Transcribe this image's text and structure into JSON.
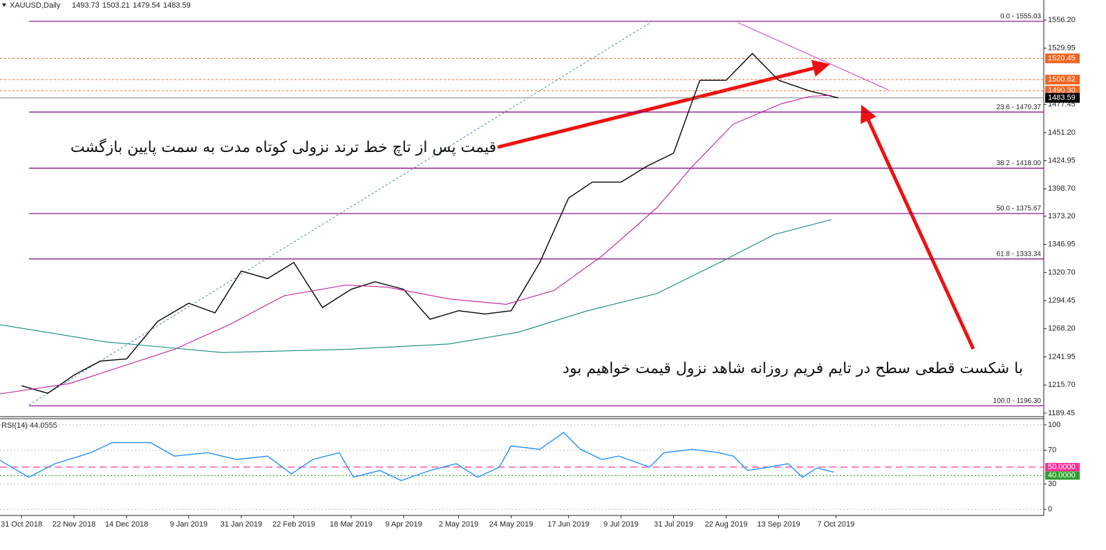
{
  "chart_data": [
    {
      "type": "line",
      "title": "XAUUSD,Daily",
      "ohlc": [
        1493.73,
        1503.21,
        1479.54,
        1483.59
      ],
      "xlim": [
        "2018-10-22",
        "2020-01-02"
      ],
      "xticks": [
        {
          "value": "2018-10-31",
          "label": "31 Oct 2018"
        },
        {
          "value": "2018-11-22",
          "label": "22 Nov 2018"
        },
        {
          "value": "2018-12-14",
          "label": "14 Dec 2018"
        },
        {
          "value": "2019-01-09",
          "label": "9 Jan 2019"
        },
        {
          "value": "2019-01-31",
          "label": "31 Jan 2019"
        },
        {
          "value": "2019-02-22",
          "label": "22 Feb 2019"
        },
        {
          "value": "2019-03-18",
          "label": "18 Mar 2019"
        },
        {
          "value": "2019-04-09",
          "label": "9 Apr 2019"
        },
        {
          "value": "2019-05-02",
          "label": "2 May 2019"
        },
        {
          "value": "2019-05-24",
          "label": "24 May 2019"
        },
        {
          "value": "2019-06-17",
          "label": "17 Jun 2019"
        },
        {
          "value": "2019-07-09",
          "label": "9 Jul 2019"
        },
        {
          "value": "2019-07-31",
          "label": "31 Jul 2019"
        },
        {
          "value": "2019-08-22",
          "label": "22 Aug 2019"
        },
        {
          "value": "2019-09-13",
          "label": "13 Sep 2019"
        },
        {
          "value": "2019-10-07",
          "label": "7 Oct 2019"
        }
      ],
      "ylim": [
        1186.2,
        1574.9
      ],
      "yticks": [
        {
          "value": 1556.2,
          "label": "1556.20"
        },
        1529.95,
        1477.45,
        {
          "value": 1451.2,
          "label": "1451.20"
        },
        1424.95,
        {
          "value": 1398.7,
          "label": "1398.70"
        },
        {
          "value": 1373.2,
          "label": "1373.20"
        },
        1346.95,
        {
          "value": 1320.7,
          "label": "1320.70"
        },
        1294.45,
        {
          "value": 1268.2,
          "label": "1268.20"
        },
        1241.95,
        {
          "value": 1215.7,
          "label": "1215.70"
        },
        1189.45
      ],
      "series": [
        {
          "color": "#000000",
          "x": [
            "2018-10-31",
            "2018-11-11",
            "2018-11-22",
            "2018-12-03",
            "2018-12-14",
            "2018-12-27",
            "2019-01-09",
            "2019-01-20",
            "2019-01-31",
            "2019-02-11",
            "2019-02-22",
            "2019-03-06",
            "2019-03-18",
            "2019-03-28",
            "2019-04-09",
            "2019-04-20",
            "2019-05-02",
            "2019-05-13",
            "2019-05-24",
            "2019-06-05",
            "2019-06-17",
            "2019-06-27",
            "2019-07-09",
            "2019-07-20",
            "2019-07-31",
            "2019-08-11",
            "2019-08-22",
            "2019-09-02",
            "2019-09-13",
            "2019-09-26",
            "2019-10-08"
          ],
          "values": [
            1215,
            1208,
            1225,
            1238,
            1240,
            1275,
            1292,
            1283,
            1322,
            1315,
            1330,
            1288,
            1305,
            1312,
            1305,
            1277,
            1285,
            1282,
            1285,
            1330,
            1390,
            1405,
            1405,
            1420,
            1432,
            1500,
            1500,
            1525,
            1500,
            1490,
            1483.59
          ]
        },
        {
          "color": "#c2189c",
          "x": [
            "2018-10-22",
            "2018-11-20",
            "2019-01-03",
            "2019-01-26",
            "2019-02-18",
            "2019-03-16",
            "2019-04-02",
            "2019-04-28",
            "2019-05-22",
            "2019-06-11",
            "2019-07-01",
            "2019-07-24",
            "2019-08-08",
            "2019-08-25",
            "2019-09-14",
            "2019-09-26",
            "2019-10-05"
          ],
          "values": [
            1207.5,
            1217,
            1249,
            1272,
            1299,
            1309,
            1307,
            1296,
            1291,
            1304,
            1336,
            1381,
            1420,
            1459,
            1478,
            1485,
            1486
          ]
        },
        {
          "color": "#0e8a80",
          "x": [
            "2018-10-22",
            "2018-12-05",
            "2019-01-23",
            "2019-03-16",
            "2019-04-28",
            "2019-05-27",
            "2019-06-25",
            "2019-07-24",
            "2019-08-22",
            "2019-09-11",
            "2019-10-05"
          ],
          "values": [
            1272,
            1256,
            1246,
            1249,
            1254,
            1265,
            1285,
            1301,
            1333,
            1356,
            1370
          ]
        }
      ],
      "fib_levels": [
        {
          "value": 1555.03,
          "label": "0.0 - 1555.03"
        },
        {
          "value": 1470.37,
          "label": "23.6 - 1470.37"
        },
        {
          "value": 1418.0,
          "label": "38.2 - 1418.00"
        },
        {
          "value": 1375.67,
          "label": "50.0 - 1375.67"
        },
        {
          "value": 1333.34,
          "label": "61.8 - 1333.34"
        },
        {
          "value": 1196.3,
          "label": "100.0 - 1196.30"
        }
      ],
      "fib_color": "#800080",
      "price_lines": [
        1520.45,
        1500.62,
        {
          "value": 1490.3,
          "label": "1490.30"
        }
      ],
      "price_line_color": "#f26522",
      "current_price": 1483.59,
      "annotations": [
        "قیمت پس از تاچ خط ترند نزولی کوتاه مدت به سمت پایین بازگشت",
        "با شکست قطعی سطح در تایم فریم روزانه شاهد نزول قیمت خواهیم بود"
      ]
    },
    {
      "type": "line",
      "title": "RSI(14) 44.0555",
      "xlim": [
        "2018-10-22",
        "2020-01-02"
      ],
      "ylim": [
        -7.3,
        107.3
      ],
      "yticks": [
        0,
        30,
        70,
        100
      ],
      "levels": [
        {
          "value": 50,
          "label": "50.0000",
          "color": "#ff3399"
        },
        {
          "value": 40,
          "label": "40.0000",
          "color": "#2e9e2e"
        }
      ],
      "series": [
        {
          "color": "#1e90ff",
          "x": [
            "2018-10-22",
            "2018-11-03",
            "2018-11-14",
            "2018-11-29",
            "2018-12-08",
            "2018-12-24",
            "2019-01-03",
            "2019-01-17",
            "2019-01-29",
            "2019-02-11",
            "2019-02-21",
            "2019-03-02",
            "2019-03-13",
            "2019-03-19",
            "2019-03-30",
            "2019-04-08",
            "2019-04-20",
            "2019-05-01",
            "2019-05-10",
            "2019-05-19",
            "2019-05-24",
            "2019-06-05",
            "2019-06-15",
            "2019-06-22",
            "2019-07-01",
            "2019-07-08",
            "2019-07-21",
            "2019-07-27",
            "2019-08-08",
            "2019-08-19",
            "2019-08-25",
            "2019-08-31",
            "2019-09-09",
            "2019-09-17",
            "2019-09-23",
            "2019-09-29",
            "2019-10-06"
          ],
          "values": [
            58,
            38,
            54,
            67,
            79,
            79,
            63,
            67,
            59,
            63,
            42,
            59,
            67,
            38,
            46,
            34,
            46,
            54,
            38,
            50,
            75,
            71,
            91,
            71,
            59,
            63,
            50,
            67,
            71,
            67,
            63,
            46,
            50,
            54,
            38,
            49,
            44.0555
          ]
        }
      ]
    }
  ]
}
